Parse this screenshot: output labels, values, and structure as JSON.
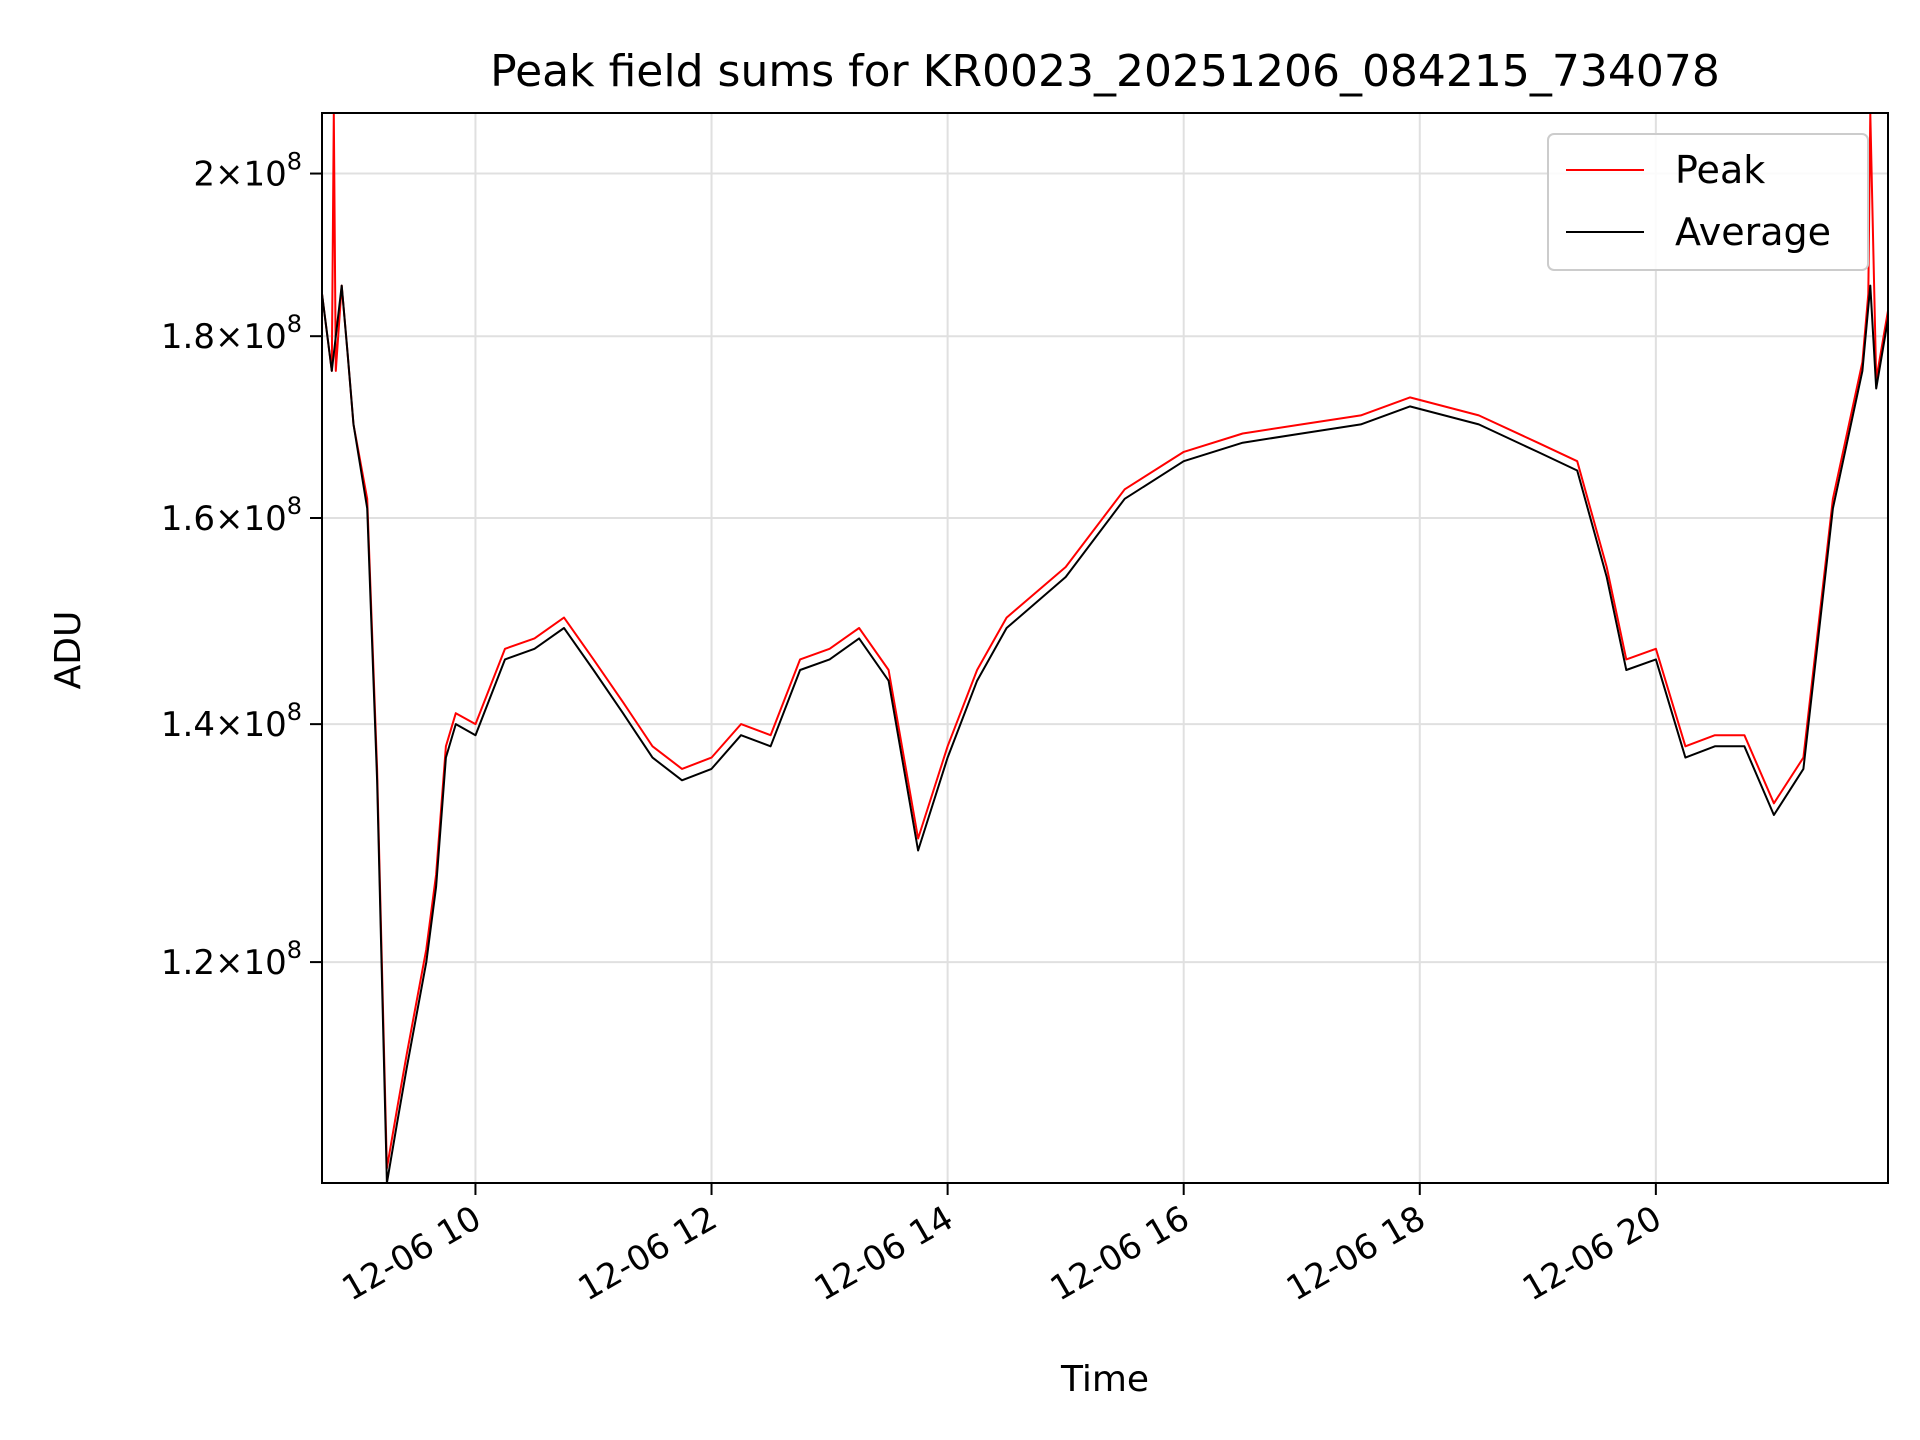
{
  "chart_data": {
    "type": "line",
    "title": "Peak field sums for KR0023_20251206_084215_734078",
    "xlabel": "Time",
    "ylabel": "ADU",
    "y_scale": "log",
    "grid": true,
    "legend_placement": "upper right",
    "xlim": [
      "2025-12-06T08:42",
      "2025-12-06T21:58"
    ],
    "ylim": [
      104000000,
      208000000
    ],
    "x_ticks": [
      {
        "t": "2025-12-06T10:00",
        "label": "12-06 10"
      },
      {
        "t": "2025-12-06T12:00",
        "label": "12-06 12"
      },
      {
        "t": "2025-12-06T14:00",
        "label": "12-06 14"
      },
      {
        "t": "2025-12-06T16:00",
        "label": "12-06 16"
      },
      {
        "t": "2025-12-06T18:00",
        "label": "12-06 18"
      },
      {
        "t": "2025-12-06T20:00",
        "label": "12-06 20"
      }
    ],
    "y_ticks": [
      {
        "value": 120000000,
        "mantissa": "1.2",
        "exponent": "8"
      },
      {
        "value": 140000000,
        "mantissa": "1.4",
        "exponent": "8"
      },
      {
        "value": 160000000,
        "mantissa": "1.6",
        "exponent": "8"
      },
      {
        "value": 180000000,
        "mantissa": "1.8",
        "exponent": "8"
      },
      {
        "value": 200000000,
        "mantissa": "2",
        "exponent": "8"
      }
    ],
    "colors": {
      "peak": "#ff0000",
      "average": "#000000",
      "grid": "#e0e0e0"
    },
    "series": [
      {
        "name": "Peak",
        "color": "#ff0000",
        "x": [
          "2025-12-06T08:42",
          "2025-12-06T08:47",
          "2025-12-06T08:48",
          "2025-12-06T08:49",
          "2025-12-06T08:52",
          "2025-12-06T08:55",
          "2025-12-06T08:58",
          "2025-12-06T09:05",
          "2025-12-06T09:10",
          "2025-12-06T09:15",
          "2025-12-06T09:20",
          "2025-12-06T09:25",
          "2025-12-06T09:35",
          "2025-12-06T09:40",
          "2025-12-06T09:45",
          "2025-12-06T09:50",
          "2025-12-06T10:00",
          "2025-12-06T10:15",
          "2025-12-06T10:30",
          "2025-12-06T10:45",
          "2025-12-06T11:00",
          "2025-12-06T11:15",
          "2025-12-06T11:30",
          "2025-12-06T11:45",
          "2025-12-06T12:00",
          "2025-12-06T12:15",
          "2025-12-06T12:30",
          "2025-12-06T12:45",
          "2025-12-06T13:00",
          "2025-12-06T13:15",
          "2025-12-06T13:30",
          "2025-12-06T13:45",
          "2025-12-06T14:00",
          "2025-12-06T14:15",
          "2025-12-06T14:30",
          "2025-12-06T15:00",
          "2025-12-06T15:30",
          "2025-12-06T16:00",
          "2025-12-06T16:30",
          "2025-12-06T17:00",
          "2025-12-06T17:30",
          "2025-12-06T17:55",
          "2025-12-06T18:30",
          "2025-12-06T19:00",
          "2025-12-06T19:20",
          "2025-12-06T19:35",
          "2025-12-06T19:45",
          "2025-12-06T20:00",
          "2025-12-06T20:15",
          "2025-12-06T20:30",
          "2025-12-06T20:45",
          "2025-12-06T21:00",
          "2025-12-06T21:15",
          "2025-12-06T21:30",
          "2025-12-06T21:45",
          "2025-12-06T21:48",
          "2025-12-06T21:49",
          "2025-12-06T21:52",
          "2025-12-06T21:58"
        ],
        "values": [
          185000000,
          176000000,
          208000000,
          176000000,
          186000000,
          178000000,
          170000000,
          162000000,
          136000000,
          105000000,
          109000000,
          113000000,
          121000000,
          127000000,
          138000000,
          141000000,
          140000000,
          147000000,
          148000000,
          150000000,
          146000000,
          142000000,
          138000000,
          136000000,
          137000000,
          140000000,
          139000000,
          146000000,
          147000000,
          149000000,
          145000000,
          130000000,
          138000000,
          145000000,
          150000000,
          155000000,
          163000000,
          167000000,
          169000000,
          170000000,
          171000000,
          173000000,
          171000000,
          168000000,
          166000000,
          155000000,
          146000000,
          147000000,
          138000000,
          139000000,
          139000000,
          133000000,
          137000000,
          162000000,
          177000000,
          185000000,
          208000000,
          175000000,
          183000000
        ]
      },
      {
        "name": "Average",
        "color": "#000000",
        "x": [
          "2025-12-06T08:42",
          "2025-12-06T08:47",
          "2025-12-06T08:52",
          "2025-12-06T08:55",
          "2025-12-06T08:58",
          "2025-12-06T09:05",
          "2025-12-06T09:10",
          "2025-12-06T09:15",
          "2025-12-06T09:20",
          "2025-12-06T09:25",
          "2025-12-06T09:35",
          "2025-12-06T09:40",
          "2025-12-06T09:45",
          "2025-12-06T09:50",
          "2025-12-06T10:00",
          "2025-12-06T10:15",
          "2025-12-06T10:30",
          "2025-12-06T10:45",
          "2025-12-06T11:00",
          "2025-12-06T11:15",
          "2025-12-06T11:30",
          "2025-12-06T11:45",
          "2025-12-06T12:00",
          "2025-12-06T12:15",
          "2025-12-06T12:30",
          "2025-12-06T12:45",
          "2025-12-06T13:00",
          "2025-12-06T13:15",
          "2025-12-06T13:30",
          "2025-12-06T13:45",
          "2025-12-06T14:00",
          "2025-12-06T14:15",
          "2025-12-06T14:30",
          "2025-12-06T15:00",
          "2025-12-06T15:30",
          "2025-12-06T16:00",
          "2025-12-06T16:30",
          "2025-12-06T17:00",
          "2025-12-06T17:30",
          "2025-12-06T17:55",
          "2025-12-06T18:30",
          "2025-12-06T19:00",
          "2025-12-06T19:20",
          "2025-12-06T19:35",
          "2025-12-06T19:45",
          "2025-12-06T20:00",
          "2025-12-06T20:15",
          "2025-12-06T20:30",
          "2025-12-06T20:45",
          "2025-12-06T21:00",
          "2025-12-06T21:15",
          "2025-12-06T21:30",
          "2025-12-06T21:45",
          "2025-12-06T21:49",
          "2025-12-06T21:52",
          "2025-12-06T21:58"
        ],
        "values": [
          185000000,
          176000000,
          186000000,
          178000000,
          170000000,
          161000000,
          135000000,
          104000000,
          108000000,
          112000000,
          120000000,
          126000000,
          137000000,
          140000000,
          139000000,
          146000000,
          147000000,
          149000000,
          145000000,
          141000000,
          137000000,
          135000000,
          136000000,
          139000000,
          138000000,
          145000000,
          146000000,
          148000000,
          144000000,
          129000000,
          137000000,
          144000000,
          149000000,
          154000000,
          162000000,
          166000000,
          168000000,
          169000000,
          170000000,
          172000000,
          170000000,
          167000000,
          165000000,
          154000000,
          145000000,
          146000000,
          137000000,
          138000000,
          138000000,
          132000000,
          136000000,
          161000000,
          176000000,
          186000000,
          174000000,
          182000000
        ]
      }
    ]
  }
}
